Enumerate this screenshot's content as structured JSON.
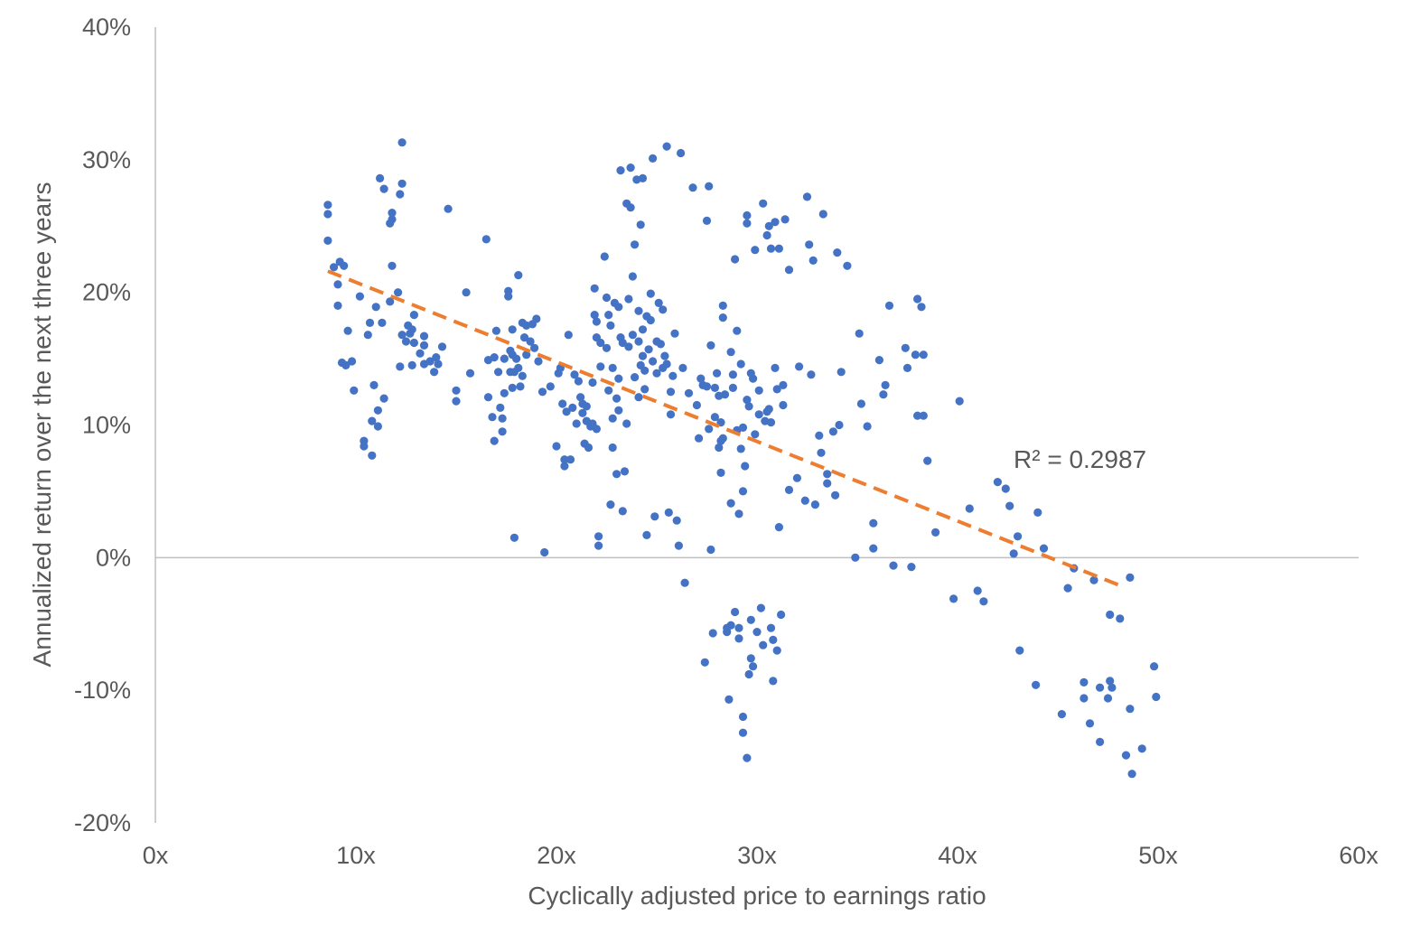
{
  "chart_data": {
    "type": "scatter",
    "xlabel": "Cyclically adjusted price to earnings ratio",
    "ylabel": "Annualized return over the next three years",
    "xlim": [
      0,
      60
    ],
    "ylim": [
      -20,
      40
    ],
    "x_ticks": [
      0,
      10,
      20,
      30,
      40,
      50,
      60
    ],
    "y_ticks": [
      40,
      30,
      20,
      10,
      0,
      -10,
      -20
    ],
    "x_tick_labels": [
      "0x",
      "10x",
      "20x",
      "30x",
      "40x",
      "50x",
      "60x"
    ],
    "y_tick_labels": [
      "40%",
      "30%",
      "20%",
      "10%",
      "0%",
      "-10%",
      "-20%"
    ],
    "grid": false,
    "zero_line": true,
    "point_color": "#4472C4",
    "trendline": {
      "type": "linear",
      "color": "#ED7D31",
      "style": "dashed",
      "x_start": 8.6,
      "y_start": 21.6,
      "x_end": 48.1,
      "y_end": -2.1
    },
    "annotation": "R² = 0.2987",
    "points": [
      [
        8.6,
        26.6
      ],
      [
        8.6,
        25.9
      ],
      [
        8.6,
        23.9
      ],
      [
        8.9,
        21.9
      ],
      [
        9.1,
        20.6
      ],
      [
        9.1,
        19.0
      ],
      [
        9.2,
        22.3
      ],
      [
        9.4,
        22.0
      ],
      [
        9.3,
        14.7
      ],
      [
        9.5,
        14.5
      ],
      [
        9.6,
        17.1
      ],
      [
        9.8,
        14.8
      ],
      [
        9.9,
        12.6
      ],
      [
        10.2,
        19.7
      ],
      [
        10.4,
        8.8
      ],
      [
        10.4,
        8.4
      ],
      [
        10.6,
        16.8
      ],
      [
        10.7,
        17.7
      ],
      [
        10.8,
        7.7
      ],
      [
        10.8,
        10.3
      ],
      [
        10.9,
        13.0
      ],
      [
        11.0,
        18.9
      ],
      [
        11.1,
        9.9
      ],
      [
        11.1,
        11.1
      ],
      [
        11.2,
        28.6
      ],
      [
        11.3,
        17.7
      ],
      [
        11.4,
        12.0
      ],
      [
        11.4,
        27.8
      ],
      [
        11.7,
        19.3
      ],
      [
        11.7,
        25.2
      ],
      [
        11.8,
        25.5
      ],
      [
        11.8,
        26.0
      ],
      [
        11.8,
        22.0
      ],
      [
        12.1,
        20.0
      ],
      [
        12.2,
        27.4
      ],
      [
        12.2,
        14.4
      ],
      [
        12.3,
        28.2
      ],
      [
        12.3,
        16.8
      ],
      [
        12.3,
        31.3
      ],
      [
        12.5,
        16.3
      ],
      [
        12.6,
        17.5
      ],
      [
        12.7,
        16.9
      ],
      [
        12.8,
        14.5
      ],
      [
        12.9,
        18.3
      ],
      [
        12.8,
        17.2
      ],
      [
        12.9,
        16.2
      ],
      [
        13.2,
        15.4
      ],
      [
        13.4,
        14.6
      ],
      [
        13.4,
        16.0
      ],
      [
        13.4,
        16.7
      ],
      [
        13.7,
        14.8
      ],
      [
        13.9,
        14.0
      ],
      [
        14.0,
        15.1
      ],
      [
        14.1,
        14.6
      ],
      [
        14.3,
        15.9
      ],
      [
        14.6,
        26.3
      ],
      [
        15.0,
        12.6
      ],
      [
        15.0,
        11.8
      ],
      [
        15.5,
        20.0
      ],
      [
        15.7,
        13.9
      ],
      [
        16.5,
        24.0
      ],
      [
        16.6,
        14.9
      ],
      [
        16.6,
        12.1
      ],
      [
        16.8,
        10.6
      ],
      [
        16.9,
        8.8
      ],
      [
        16.9,
        15.1
      ],
      [
        17.0,
        17.1
      ],
      [
        17.1,
        14.0
      ],
      [
        17.2,
        11.3
      ],
      [
        17.3,
        9.5
      ],
      [
        17.3,
        10.5
      ],
      [
        17.4,
        15.0
      ],
      [
        17.4,
        12.4
      ],
      [
        17.6,
        19.7
      ],
      [
        17.6,
        20.1
      ],
      [
        17.7,
        14.0
      ],
      [
        17.7,
        15.6
      ],
      [
        17.8,
        17.2
      ],
      [
        17.8,
        15.3
      ],
      [
        17.8,
        12.8
      ],
      [
        17.9,
        14.0
      ],
      [
        18.0,
        15.0
      ],
      [
        18.1,
        21.3
      ],
      [
        18.1,
        14.3
      ],
      [
        18.2,
        12.9
      ],
      [
        18.3,
        17.7
      ],
      [
        18.3,
        13.7
      ],
      [
        18.4,
        16.6
      ],
      [
        18.5,
        15.3
      ],
      [
        18.5,
        17.5
      ],
      [
        17.9,
        1.5
      ],
      [
        18.7,
        16.3
      ],
      [
        18.8,
        17.6
      ],
      [
        18.9,
        15.8
      ],
      [
        19.0,
        18.0
      ],
      [
        19.1,
        14.8
      ],
      [
        19.3,
        12.5
      ],
      [
        19.4,
        0.4
      ],
      [
        19.7,
        12.9
      ],
      [
        20.0,
        8.4
      ],
      [
        20.1,
        13.9
      ],
      [
        20.2,
        14.3
      ],
      [
        20.3,
        11.6
      ],
      [
        20.4,
        6.9
      ],
      [
        20.4,
        7.4
      ],
      [
        20.5,
        11.0
      ],
      [
        20.6,
        16.8
      ],
      [
        20.7,
        7.4
      ],
      [
        20.8,
        11.3
      ],
      [
        20.9,
        13.8
      ],
      [
        21.0,
        10.1
      ],
      [
        21.1,
        13.3
      ],
      [
        21.2,
        12.1
      ],
      [
        21.3,
        11.6
      ],
      [
        21.3,
        10.9
      ],
      [
        21.4,
        8.6
      ],
      [
        21.5,
        11.4
      ],
      [
        21.5,
        10.3
      ],
      [
        21.6,
        8.3
      ],
      [
        21.7,
        9.9
      ],
      [
        21.8,
        10.1
      ],
      [
        21.8,
        13.2
      ],
      [
        21.9,
        20.3
      ],
      [
        21.9,
        18.3
      ],
      [
        22.0,
        17.8
      ],
      [
        22.0,
        16.6
      ],
      [
        22.0,
        9.7
      ],
      [
        22.1,
        1.6
      ],
      [
        22.1,
        0.9
      ],
      [
        22.2,
        16.2
      ],
      [
        22.2,
        14.4
      ],
      [
        22.4,
        22.7
      ],
      [
        22.5,
        19.6
      ],
      [
        22.5,
        15.8
      ],
      [
        22.6,
        12.6
      ],
      [
        22.6,
        18.3
      ],
      [
        22.7,
        17.5
      ],
      [
        22.7,
        4.0
      ],
      [
        22.8,
        10.5
      ],
      [
        22.8,
        8.3
      ],
      [
        22.8,
        14.3
      ],
      [
        22.9,
        19.2
      ],
      [
        23.0,
        12.0
      ],
      [
        23.0,
        6.3
      ],
      [
        23.1,
        11.1
      ],
      [
        23.1,
        18.9
      ],
      [
        23.1,
        13.5
      ],
      [
        23.2,
        29.2
      ],
      [
        23.2,
        16.6
      ],
      [
        23.3,
        16.2
      ],
      [
        23.3,
        3.5
      ],
      [
        23.4,
        6.5
      ],
      [
        23.5,
        10.1
      ],
      [
        23.5,
        26.7
      ],
      [
        23.6,
        19.5
      ],
      [
        23.6,
        15.9
      ],
      [
        23.7,
        29.4
      ],
      [
        23.7,
        26.4
      ],
      [
        23.8,
        21.2
      ],
      [
        23.8,
        16.8
      ],
      [
        23.9,
        23.6
      ],
      [
        23.9,
        13.6
      ],
      [
        24.0,
        28.5
      ],
      [
        24.1,
        18.6
      ],
      [
        24.1,
        12.1
      ],
      [
        24.1,
        16.3
      ],
      [
        24.2,
        14.5
      ],
      [
        24.2,
        25.1
      ],
      [
        24.3,
        15.2
      ],
      [
        24.3,
        17.2
      ],
      [
        24.3,
        28.6
      ],
      [
        24.4,
        14.1
      ],
      [
        24.4,
        12.7
      ],
      [
        24.5,
        18.2
      ],
      [
        24.5,
        1.7
      ],
      [
        24.6,
        15.7
      ],
      [
        24.7,
        19.9
      ],
      [
        24.7,
        17.9
      ],
      [
        24.8,
        30.1
      ],
      [
        24.8,
        14.8
      ],
      [
        24.9,
        3.1
      ],
      [
        25.0,
        16.3
      ],
      [
        25.0,
        13.9
      ],
      [
        25.1,
        19.2
      ],
      [
        25.2,
        16.1
      ],
      [
        25.3,
        18.7
      ],
      [
        25.3,
        14.3
      ],
      [
        25.4,
        15.2
      ],
      [
        25.5,
        14.6
      ],
      [
        25.5,
        31.0
      ],
      [
        25.6,
        3.4
      ],
      [
        25.7,
        12.5
      ],
      [
        25.7,
        10.8
      ],
      [
        25.8,
        13.7
      ],
      [
        25.9,
        16.9
      ],
      [
        26.0,
        2.8
      ],
      [
        26.1,
        0.9
      ],
      [
        26.2,
        30.5
      ],
      [
        26.3,
        14.3
      ],
      [
        26.4,
        -1.9
      ],
      [
        26.6,
        12.4
      ],
      [
        26.8,
        27.9
      ],
      [
        27.0,
        11.5
      ],
      [
        27.1,
        9.0
      ],
      [
        27.2,
        13.5
      ],
      [
        27.3,
        13.0
      ],
      [
        27.4,
        -7.9
      ],
      [
        27.5,
        25.4
      ],
      [
        27.5,
        12.9
      ],
      [
        27.6,
        9.7
      ],
      [
        27.6,
        28.0
      ],
      [
        27.7,
        0.6
      ],
      [
        27.7,
        16.0
      ],
      [
        27.8,
        -5.7
      ],
      [
        27.9,
        10.6
      ],
      [
        27.9,
        12.8
      ],
      [
        28.0,
        13.9
      ],
      [
        28.1,
        12.2
      ],
      [
        28.1,
        8.3
      ],
      [
        28.2,
        10.2
      ],
      [
        28.2,
        6.4
      ],
      [
        28.2,
        8.8
      ],
      [
        28.3,
        19.0
      ],
      [
        28.3,
        18.1
      ],
      [
        28.3,
        9.0
      ],
      [
        28.4,
        12.3
      ],
      [
        28.5,
        -5.6
      ],
      [
        28.5,
        -5.3
      ],
      [
        28.6,
        -10.7
      ],
      [
        28.7,
        -5.1
      ],
      [
        28.7,
        4.1
      ],
      [
        28.7,
        15.5
      ],
      [
        28.8,
        12.8
      ],
      [
        28.8,
        13.8
      ],
      [
        28.9,
        -4.1
      ],
      [
        28.9,
        22.5
      ],
      [
        29.0,
        17.1
      ],
      [
        29.0,
        9.6
      ],
      [
        29.1,
        -5.3
      ],
      [
        29.1,
        -6.1
      ],
      [
        29.1,
        3.3
      ],
      [
        29.2,
        14.6
      ],
      [
        29.2,
        8.2
      ],
      [
        29.3,
        -12.0
      ],
      [
        29.3,
        -13.2
      ],
      [
        29.3,
        9.8
      ],
      [
        29.3,
        5.0
      ],
      [
        29.4,
        6.9
      ],
      [
        29.5,
        -15.1
      ],
      [
        29.5,
        25.8
      ],
      [
        29.5,
        25.2
      ],
      [
        29.5,
        11.9
      ],
      [
        29.6,
        -8.8
      ],
      [
        29.6,
        11.4
      ],
      [
        29.7,
        -4.7
      ],
      [
        29.7,
        -7.6
      ],
      [
        29.7,
        13.9
      ],
      [
        29.8,
        -8.2
      ],
      [
        29.8,
        13.5
      ],
      [
        29.9,
        9.3
      ],
      [
        29.9,
        23.2
      ],
      [
        30.0,
        -5.6
      ],
      [
        30.1,
        12.6
      ],
      [
        30.1,
        10.8
      ],
      [
        30.2,
        -3.8
      ],
      [
        30.3,
        26.7
      ],
      [
        30.3,
        -6.6
      ],
      [
        30.4,
        10.3
      ],
      [
        30.5,
        24.3
      ],
      [
        30.5,
        11.0
      ],
      [
        30.6,
        25.0
      ],
      [
        30.6,
        11.2
      ],
      [
        30.7,
        23.3
      ],
      [
        30.7,
        -5.3
      ],
      [
        30.7,
        10.2
      ],
      [
        30.8,
        -9.3
      ],
      [
        30.8,
        -6.2
      ],
      [
        30.9,
        25.3
      ],
      [
        30.9,
        14.3
      ],
      [
        31.0,
        12.7
      ],
      [
        31.0,
        -7.0
      ],
      [
        31.1,
        23.3
      ],
      [
        31.1,
        2.3
      ],
      [
        31.2,
        -4.3
      ],
      [
        31.3,
        11.5
      ],
      [
        31.3,
        13.0
      ],
      [
        31.4,
        25.5
      ],
      [
        31.6,
        21.7
      ],
      [
        31.6,
        5.1
      ],
      [
        32.0,
        6.0
      ],
      [
        32.1,
        14.4
      ],
      [
        32.4,
        4.3
      ],
      [
        32.5,
        27.2
      ],
      [
        32.6,
        23.6
      ],
      [
        32.7,
        13.8
      ],
      [
        32.8,
        22.4
      ],
      [
        32.9,
        4.0
      ],
      [
        33.1,
        9.2
      ],
      [
        33.2,
        7.9
      ],
      [
        33.3,
        25.9
      ],
      [
        33.5,
        5.6
      ],
      [
        33.5,
        6.3
      ],
      [
        33.8,
        9.5
      ],
      [
        33.9,
        4.7
      ],
      [
        34.0,
        23.0
      ],
      [
        34.1,
        10.0
      ],
      [
        34.2,
        14.0
      ],
      [
        34.5,
        22.0
      ],
      [
        34.9,
        0.0
      ],
      [
        35.1,
        16.9
      ],
      [
        35.2,
        11.6
      ],
      [
        35.5,
        9.9
      ],
      [
        35.8,
        2.6
      ],
      [
        35.8,
        0.7
      ],
      [
        36.1,
        14.9
      ],
      [
        36.3,
        12.3
      ],
      [
        36.4,
        13.0
      ],
      [
        36.6,
        19.0
      ],
      [
        36.8,
        -0.6
      ],
      [
        37.4,
        15.8
      ],
      [
        37.5,
        14.3
      ],
      [
        37.7,
        -0.7
      ],
      [
        37.9,
        15.3
      ],
      [
        38.0,
        19.5
      ],
      [
        38.0,
        10.7
      ],
      [
        38.2,
        18.9
      ],
      [
        38.3,
        10.7
      ],
      [
        38.3,
        15.3
      ],
      [
        38.5,
        7.3
      ],
      [
        38.9,
        1.9
      ],
      [
        39.8,
        -3.1
      ],
      [
        40.1,
        11.8
      ],
      [
        40.6,
        3.7
      ],
      [
        41.0,
        -2.5
      ],
      [
        41.3,
        -3.3
      ],
      [
        42.0,
        5.7
      ],
      [
        42.4,
        5.2
      ],
      [
        42.6,
        3.9
      ],
      [
        42.8,
        0.3
      ],
      [
        43.0,
        1.6
      ],
      [
        43.1,
        -7.0
      ],
      [
        43.9,
        -9.6
      ],
      [
        44.0,
        3.4
      ],
      [
        44.3,
        0.7
      ],
      [
        45.2,
        -11.8
      ],
      [
        45.5,
        -2.3
      ],
      [
        45.8,
        -0.8
      ],
      [
        46.3,
        -9.4
      ],
      [
        46.3,
        -10.6
      ],
      [
        46.6,
        -12.5
      ],
      [
        46.8,
        -1.7
      ],
      [
        47.1,
        -13.9
      ],
      [
        47.1,
        -9.8
      ],
      [
        47.5,
        -10.6
      ],
      [
        47.6,
        -9.3
      ],
      [
        47.6,
        -4.3
      ],
      [
        47.7,
        -9.8
      ],
      [
        48.1,
        -4.6
      ],
      [
        48.4,
        -14.9
      ],
      [
        48.6,
        -1.5
      ],
      [
        48.6,
        -11.4
      ],
      [
        48.7,
        -16.3
      ],
      [
        49.2,
        -14.4
      ],
      [
        49.8,
        -8.2
      ],
      [
        49.9,
        -10.5
      ]
    ]
  }
}
